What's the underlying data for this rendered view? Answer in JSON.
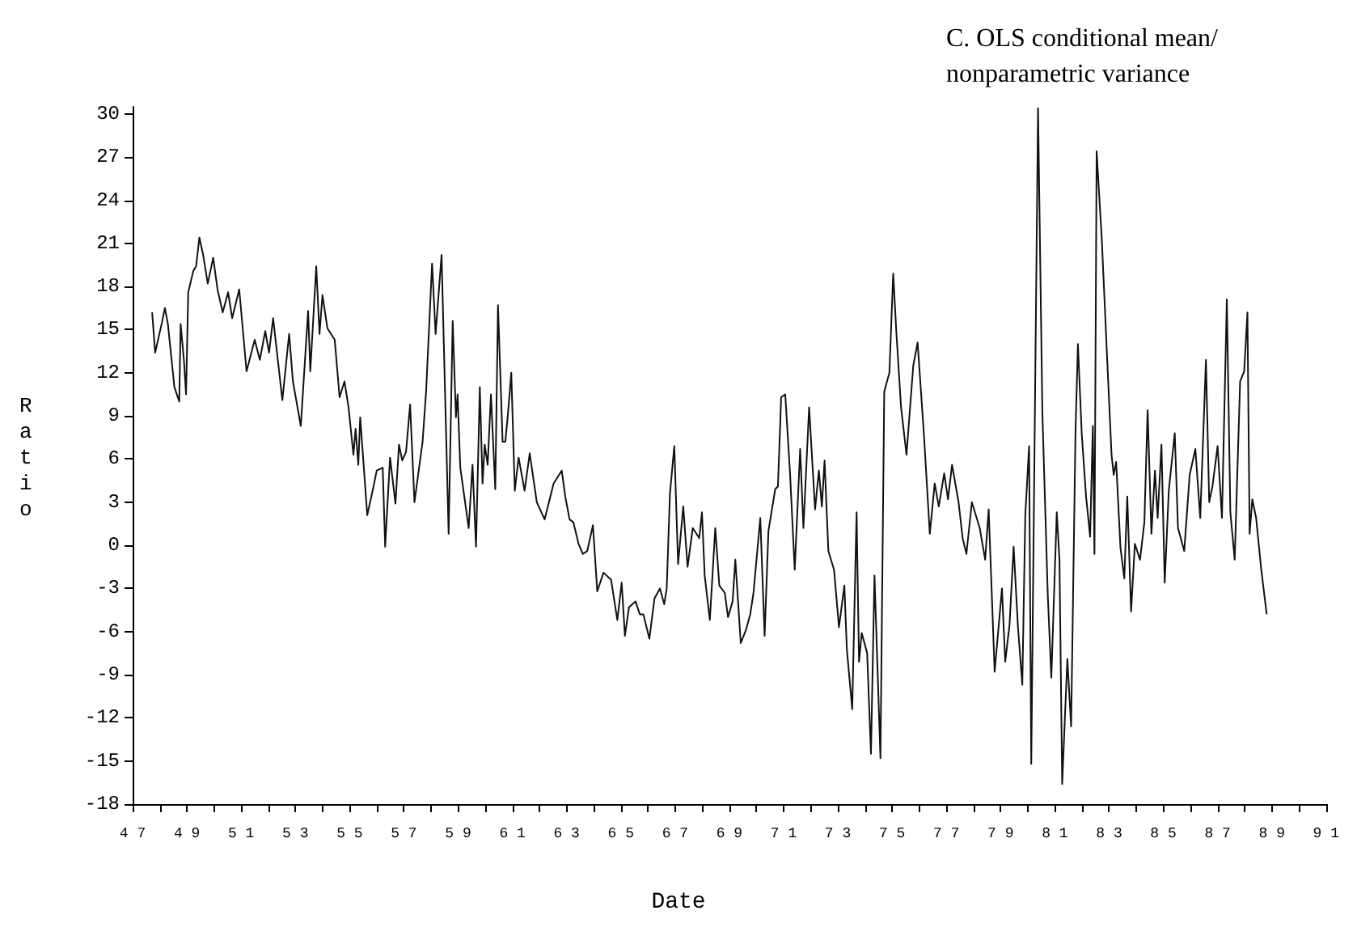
{
  "chart_data": {
    "type": "line",
    "title": "C. OLS conditional mean/ nonparametric variance",
    "xlabel": "Date",
    "ylabel": "Ratio",
    "color": "#111111",
    "line_style": "solid",
    "marker": "none",
    "grid": false,
    "xlim": [
      47,
      91
    ],
    "xticks": [
      47,
      {
        "value": 48,
        "label": null
      },
      49,
      {
        "value": 50,
        "label": null
      },
      51,
      {
        "value": 52,
        "label": null
      },
      53,
      {
        "value": 54,
        "label": null
      },
      55,
      {
        "value": 56,
        "label": null
      },
      57,
      {
        "value": 58,
        "label": null
      },
      59,
      {
        "value": 60,
        "label": null
      },
      61,
      {
        "value": 62,
        "label": null
      },
      63,
      {
        "value": 64,
        "label": null
      },
      65,
      {
        "value": 66,
        "label": null
      },
      67,
      {
        "value": 68,
        "label": null
      },
      69,
      {
        "value": 70,
        "label": null
      },
      71,
      {
        "value": 72,
        "label": null
      },
      73,
      {
        "value": 74,
        "label": null
      },
      75,
      {
        "value": 76,
        "label": null
      },
      77,
      {
        "value": 78,
        "label": null
      },
      79,
      {
        "value": 80,
        "label": null
      },
      81,
      {
        "value": 82,
        "label": null
      },
      83,
      {
        "value": 84,
        "label": null
      },
      85,
      {
        "value": 86,
        "label": null
      },
      87,
      {
        "value": 88,
        "label": null
      },
      89,
      {
        "value": 90,
        "label": null
      },
      91
    ],
    "ylim": [
      -18,
      30.5
    ],
    "yticks": [
      -18,
      -15,
      -12,
      -9,
      -6,
      -3,
      0,
      3,
      6,
      9,
      12,
      15,
      18,
      21,
      24,
      27,
      30
    ],
    "x": [
      47.72,
      47.83,
      48.07,
      48.19,
      48.3,
      48.54,
      48.72,
      48.77,
      48.89,
      48.97,
      49.05,
      49.24,
      49.34,
      49.46,
      49.6,
      49.77,
      49.97,
      50.13,
      50.32,
      50.52,
      50.67,
      50.93,
      51.2,
      51.5,
      51.69,
      51.89,
      52.03,
      52.18,
      52.52,
      52.77,
      52.91,
      53.2,
      53.47,
      53.55,
      53.77,
      53.89,
      54.0,
      54.18,
      54.45,
      54.63,
      54.81,
      54.96,
      55.14,
      55.22,
      55.32,
      55.39,
      55.65,
      55.86,
      56.0,
      56.22,
      56.31,
      56.49,
      56.69,
      56.82,
      56.94,
      57.08,
      57.23,
      57.39,
      57.69,
      57.82,
      58.04,
      58.17,
      58.39,
      58.65,
      58.8,
      58.92,
      58.98,
      59.08,
      59.39,
      59.53,
      59.66,
      59.8,
      59.9,
      59.98,
      60.09,
      60.21,
      60.37,
      60.47,
      60.64,
      60.74,
      60.84,
      60.96,
      61.09,
      61.23,
      61.45,
      61.64,
      61.9,
      62.19,
      62.52,
      62.82,
      62.95,
      63.11,
      63.25,
      63.44,
      63.6,
      63.76,
      63.97,
      64.13,
      64.36,
      64.64,
      64.87,
      65.03,
      65.15,
      65.3,
      65.54,
      65.7,
      65.83,
      66.05,
      66.24,
      66.44,
      66.6,
      66.69,
      66.81,
      66.97,
      67.11,
      67.3,
      67.46,
      67.65,
      67.89,
      67.99,
      68.09,
      68.28,
      68.48,
      68.63,
      68.83,
      68.95,
      69.12,
      69.22,
      69.42,
      69.61,
      69.77,
      69.89,
      70.14,
      70.3,
      70.44,
      70.69,
      70.79,
      70.91,
      71.06,
      71.24,
      71.41,
      71.61,
      71.73,
      71.94,
      72.16,
      72.3,
      72.41,
      72.51,
      72.65,
      72.86,
      73.04,
      73.24,
      73.33,
      73.53,
      73.69,
      73.78,
      73.88,
      74.08,
      74.22,
      74.35,
      74.57,
      74.71,
      74.9,
      75.04,
      75.16,
      75.33,
      75.53,
      75.78,
      75.94,
      76.17,
      76.39,
      76.57,
      76.72,
      76.92,
      77.06,
      77.21,
      77.45,
      77.6,
      77.74,
      77.94,
      78.23,
      78.43,
      78.56,
      78.78,
      79.05,
      79.17,
      79.33,
      79.48,
      79.64,
      79.8,
      79.91,
      80.05,
      80.13,
      80.38,
      80.54,
      80.74,
      80.87,
      81.07,
      81.17,
      81.27,
      81.46,
      81.6,
      81.76,
      81.85,
      81.99,
      82.15,
      82.3,
      82.4,
      82.46,
      82.54,
      82.73,
      82.93,
      83.09,
      83.17,
      83.26,
      83.42,
      83.56,
      83.67,
      83.81,
      83.95,
      84.14,
      84.3,
      84.42,
      84.56,
      84.69,
      84.79,
      84.93,
      85.05,
      85.2,
      85.42,
      85.54,
      85.77,
      85.97,
      86.18,
      86.36,
      86.57,
      86.69,
      86.81,
      87.0,
      87.16,
      87.34,
      87.47,
      87.63,
      87.83,
      87.98,
      88.1,
      88.18,
      88.28,
      88.42,
      88.61,
      88.81
    ],
    "values": [
      16.2,
      13.4,
      15.4,
      16.5,
      15.4,
      11.0,
      10.0,
      15.4,
      12.9,
      10.5,
      17.6,
      19.1,
      19.4,
      21.4,
      20.2,
      18.2,
      20.0,
      17.8,
      16.2,
      17.6,
      15.8,
      17.8,
      12.1,
      14.3,
      12.9,
      14.9,
      13.4,
      15.8,
      10.1,
      14.7,
      11.4,
      8.3,
      16.3,
      12.1,
      19.4,
      14.7,
      17.4,
      15.1,
      14.3,
      10.3,
      11.4,
      9.6,
      6.3,
      8.1,
      5.6,
      8.9,
      2.1,
      3.9,
      5.2,
      5.4,
      -0.1,
      6.1,
      2.9,
      7.0,
      5.9,
      6.5,
      9.8,
      3.0,
      7.2,
      10.7,
      19.6,
      14.7,
      20.2,
      0.8,
      15.6,
      8.9,
      10.5,
      5.4,
      1.2,
      5.6,
      -0.1,
      11.0,
      4.3,
      7.0,
      5.6,
      10.5,
      3.9,
      16.7,
      7.2,
      7.2,
      9.2,
      12.0,
      3.8,
      6.1,
      3.8,
      6.4,
      3.0,
      1.8,
      4.3,
      5.2,
      3.4,
      1.8,
      1.6,
      0.1,
      -0.6,
      -0.4,
      1.4,
      -3.2,
      -1.9,
      -2.4,
      -5.2,
      -2.6,
      -6.3,
      -4.3,
      -3.9,
      -4.8,
      -4.8,
      -6.5,
      -3.7,
      -3.0,
      -4.1,
      -3.0,
      3.6,
      6.9,
      -1.3,
      2.7,
      -1.5,
      1.2,
      0.5,
      2.3,
      -2.1,
      -5.2,
      1.2,
      -2.8,
      -3.3,
      -5.0,
      -3.9,
      -1.0,
      -6.8,
      -5.9,
      -4.8,
      -3.3,
      1.9,
      -6.3,
      1.0,
      3.9,
      4.1,
      10.3,
      10.5,
      4.9,
      -1.7,
      6.7,
      1.2,
      9.6,
      2.5,
      5.2,
      2.7,
      5.9,
      -0.4,
      -1.7,
      -5.7,
      -2.8,
      -7.2,
      -11.4,
      2.3,
      -8.1,
      -6.1,
      -7.5,
      -14.5,
      -2.1,
      -14.8,
      10.7,
      12.0,
      18.9,
      14.7,
      9.6,
      6.3,
      12.5,
      14.1,
      7.8,
      0.8,
      4.3,
      2.7,
      5.0,
      3.2,
      5.6,
      3.0,
      0.5,
      -0.6,
      3.0,
      1.2,
      -1.0,
      2.5,
      -8.8,
      -3.0,
      -8.1,
      -5.5,
      -0.1,
      -5.7,
      -9.7,
      2.1,
      6.9,
      -15.2,
      30.4,
      9.2,
      -3.5,
      -9.2,
      2.3,
      -1.0,
      -16.6,
      -7.9,
      -12.6,
      7.8,
      14.0,
      7.8,
      3.4,
      0.6,
      8.3,
      -0.6,
      27.4,
      21.3,
      12.9,
      6.3,
      4.9,
      5.8,
      -0.2,
      -2.3,
      3.4,
      -4.6,
      0.1,
      -1.0,
      1.6,
      9.4,
      0.8,
      5.2,
      1.9,
      7.0,
      -2.6,
      3.8,
      7.8,
      1.2,
      -0.4,
      4.9,
      6.7,
      1.9,
      12.9,
      3.0,
      4.1,
      6.9,
      1.9,
      17.1,
      2.3,
      -1.0,
      11.4,
      12.1,
      16.2,
      0.8,
      3.2,
      1.9,
      -1.7,
      -4.8
    ]
  }
}
